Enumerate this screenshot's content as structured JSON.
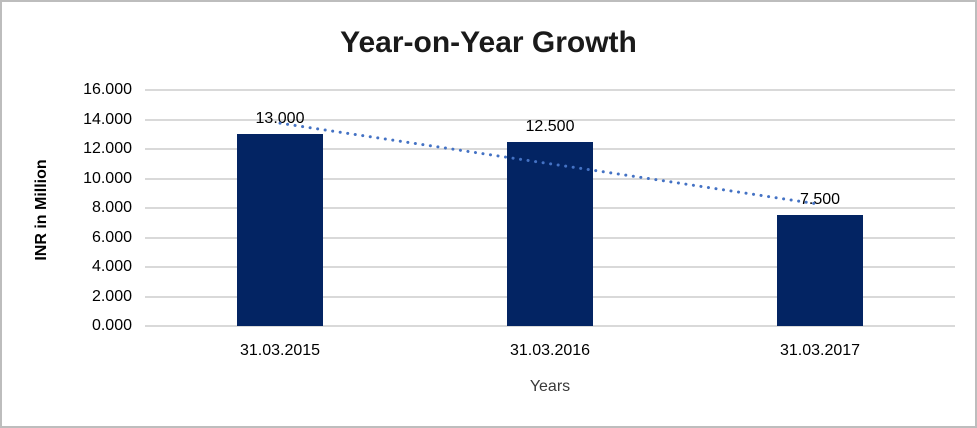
{
  "window": {
    "background_color": "#ffffff",
    "border_color": "#bdbdbd"
  },
  "chart_data": {
    "type": "bar",
    "title": "Year-on-Year Growth",
    "xlabel": "Years",
    "ylabel": "INR in Million",
    "categories": [
      "31.03.2015",
      "31.03.2016",
      "31.03.2017"
    ],
    "values": [
      13000,
      12500,
      7500
    ],
    "value_labels": [
      "13.000",
      "12.500",
      "7.500"
    ],
    "ylim": [
      0,
      16000
    ],
    "ytick_step": 2000,
    "ytick_labels": [
      "16.000",
      "14.000",
      "12.000",
      "10.000",
      "8.000",
      "6.000",
      "4.000",
      "2.000",
      "0.000"
    ],
    "grid": "horizontal",
    "legend": "none",
    "bar_color": "#032463",
    "grid_color": "#d9d9d9",
    "trendline": {
      "style": "dotted",
      "color": "#4472c4",
      "start_value": 13750,
      "end_value": 8250
    }
  }
}
